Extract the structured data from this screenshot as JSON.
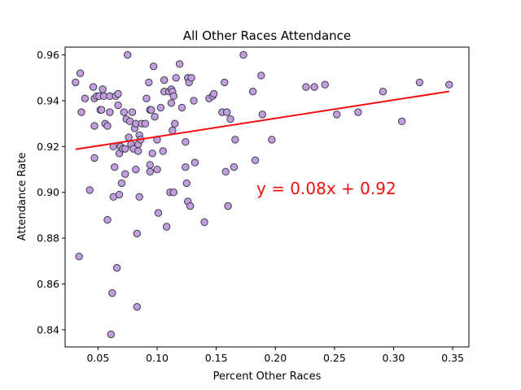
{
  "chart_data": {
    "type": "scatter",
    "title": "All Other Races Attendance",
    "xlabel": "Percent Other Races",
    "ylabel": "Attendance Rate",
    "xlim": [
      0.0222,
      0.3637
    ],
    "ylim": [
      0.8325,
      0.9634
    ],
    "xticks": [
      0.05,
      0.1,
      0.15,
      0.2,
      0.25,
      0.3,
      0.35
    ],
    "xtick_labels": [
      "0.05",
      "0.10",
      "0.15",
      "0.20",
      "0.25",
      "0.30",
      "0.35"
    ],
    "yticks": [
      0.84,
      0.86,
      0.88,
      0.9,
      0.92,
      0.94,
      0.96
    ],
    "ytick_labels": [
      "0.84",
      "0.86",
      "0.88",
      "0.90",
      "0.92",
      "0.94",
      "0.96"
    ],
    "grid": false,
    "marker_color": "#c29edb",
    "marker_edge_color": "#3b3b52",
    "trendline": {
      "slope": 0.08,
      "intercept": 0.9163,
      "x_range": [
        0.031,
        0.347
      ],
      "color": "#ee1111",
      "label": "y = 0.08x + 0.92"
    },
    "points": [
      [
        0.031,
        0.948
      ],
      [
        0.035,
        0.952
      ],
      [
        0.036,
        0.935
      ],
      [
        0.034,
        0.872
      ],
      [
        0.039,
        0.941
      ],
      [
        0.043,
        0.901
      ],
      [
        0.046,
        0.946
      ],
      [
        0.047,
        0.941
      ],
      [
        0.047,
        0.929
      ],
      [
        0.047,
        0.915
      ],
      [
        0.049,
        0.942
      ],
      [
        0.051,
        0.942
      ],
      [
        0.052,
        0.936
      ],
      [
        0.053,
        0.936
      ],
      [
        0.054,
        0.945
      ],
      [
        0.055,
        0.942
      ],
      [
        0.056,
        0.93
      ],
      [
        0.058,
        0.929
      ],
      [
        0.06,
        0.942
      ],
      [
        0.06,
        0.935
      ],
      [
        0.058,
        0.888
      ],
      [
        0.061,
        0.838
      ],
      [
        0.062,
        0.856
      ],
      [
        0.063,
        0.898
      ],
      [
        0.063,
        0.92
      ],
      [
        0.064,
        0.911
      ],
      [
        0.065,
        0.942
      ],
      [
        0.066,
        0.867
      ],
      [
        0.067,
        0.943
      ],
      [
        0.067,
        0.938
      ],
      [
        0.068,
        0.917
      ],
      [
        0.068,
        0.899
      ],
      [
        0.069,
        0.92
      ],
      [
        0.07,
        0.904
      ],
      [
        0.071,
        0.919
      ],
      [
        0.072,
        0.935
      ],
      [
        0.073,
        0.919
      ],
      [
        0.073,
        0.908
      ],
      [
        0.074,
        0.932
      ],
      [
        0.075,
        0.96
      ],
      [
        0.076,
        0.924
      ],
      [
        0.077,
        0.931
      ],
      [
        0.078,
        0.921
      ],
      [
        0.079,
        0.935
      ],
      [
        0.08,
        0.919
      ],
      [
        0.081,
        0.928
      ],
      [
        0.082,
        0.91
      ],
      [
        0.082,
        0.93
      ],
      [
        0.083,
        0.882
      ],
      [
        0.083,
        0.85
      ],
      [
        0.084,
        0.918
      ],
      [
        0.084,
        0.921
      ],
      [
        0.085,
        0.925
      ],
      [
        0.085,
        0.898
      ],
      [
        0.086,
        0.923
      ],
      [
        0.087,
        0.93
      ],
      [
        0.09,
        0.93
      ],
      [
        0.091,
        0.941
      ],
      [
        0.093,
        0.948
      ],
      [
        0.094,
        0.909
      ],
      [
        0.094,
        0.912
      ],
      [
        0.094,
        0.936
      ],
      [
        0.095,
        0.936
      ],
      [
        0.096,
        0.917
      ],
      [
        0.097,
        0.955
      ],
      [
        0.098,
        0.933
      ],
      [
        0.1,
        0.91
      ],
      [
        0.1,
        0.923
      ],
      [
        0.101,
        0.891
      ],
      [
        0.103,
        0.937
      ],
      [
        0.105,
        0.918
      ],
      [
        0.106,
        0.944
      ],
      [
        0.106,
        0.949
      ],
      [
        0.108,
        0.885
      ],
      [
        0.11,
        0.944
      ],
      [
        0.111,
        0.9
      ],
      [
        0.112,
        0.945
      ],
      [
        0.112,
        0.939
      ],
      [
        0.113,
        0.944
      ],
      [
        0.113,
        0.927
      ],
      [
        0.114,
        0.942
      ],
      [
        0.114,
        0.9
      ],
      [
        0.115,
        0.93
      ],
      [
        0.116,
        0.95
      ],
      [
        0.119,
        0.956
      ],
      [
        0.121,
        0.937
      ],
      [
        0.124,
        0.922
      ],
      [
        0.124,
        0.911
      ],
      [
        0.125,
        0.904
      ],
      [
        0.126,
        0.896
      ],
      [
        0.126,
        0.95
      ],
      [
        0.127,
        0.948
      ],
      [
        0.128,
        0.894
      ],
      [
        0.129,
        0.95
      ],
      [
        0.131,
        0.94
      ],
      [
        0.132,
        0.913
      ],
      [
        0.14,
        0.887
      ],
      [
        0.144,
        0.941
      ],
      [
        0.147,
        0.942
      ],
      [
        0.148,
        0.943
      ],
      [
        0.155,
        0.935
      ],
      [
        0.157,
        0.948
      ],
      [
        0.158,
        0.909
      ],
      [
        0.159,
        0.935
      ],
      [
        0.16,
        0.894
      ],
      [
        0.162,
        0.932
      ],
      [
        0.165,
        0.911
      ],
      [
        0.166,
        0.923
      ],
      [
        0.173,
        0.96
      ],
      [
        0.181,
        0.944
      ],
      [
        0.183,
        0.914
      ],
      [
        0.188,
        0.951
      ],
      [
        0.189,
        0.934
      ],
      [
        0.197,
        0.923
      ],
      [
        0.226,
        0.946
      ],
      [
        0.233,
        0.946
      ],
      [
        0.242,
        0.947
      ],
      [
        0.252,
        0.934
      ],
      [
        0.27,
        0.935
      ],
      [
        0.291,
        0.944
      ],
      [
        0.307,
        0.931
      ],
      [
        0.322,
        0.948
      ],
      [
        0.347,
        0.947
      ]
    ]
  }
}
